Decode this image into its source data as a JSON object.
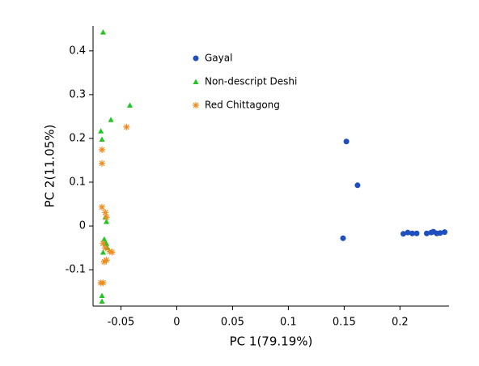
{
  "chart_data": {
    "type": "scatter",
    "xlabel": "PC 1(79.19%)",
    "ylabel": "PC 2(11.05%)",
    "xlim": [
      -0.075,
      0.244
    ],
    "ylim": [
      -0.183,
      0.457
    ],
    "xticks": [
      -0.05,
      0,
      0.05,
      0.1,
      0.15,
      0.2
    ],
    "yticks": [
      -0.1,
      0,
      0.1,
      0.2,
      0.3,
      0.4
    ],
    "legend": "top-center",
    "series": [
      {
        "name": "Gayal",
        "color": "#1f4fbf",
        "marker": "circle",
        "x": [
          0.152,
          0.162,
          0.149,
          0.203,
          0.207,
          0.211,
          0.215,
          0.224,
          0.228,
          0.23,
          0.233,
          0.236,
          0.24
        ],
        "values": [
          0.193,
          0.093,
          -0.028,
          -0.018,
          -0.015,
          -0.017,
          -0.017,
          -0.017,
          -0.015,
          -0.013,
          -0.017,
          -0.016,
          -0.014
        ]
      },
      {
        "name": "Non-descript Deshi",
        "color": "#1fc81f",
        "marker": "triangle",
        "x": [
          -0.066,
          -0.042,
          -0.059,
          -0.068,
          -0.067,
          -0.064,
          -0.063,
          -0.065,
          -0.064,
          -0.062,
          -0.066,
          -0.063,
          -0.067,
          -0.067
        ],
        "values": [
          0.443,
          0.276,
          0.243,
          0.217,
          0.198,
          0.02,
          0.01,
          -0.03,
          -0.04,
          -0.05,
          -0.06,
          -0.04,
          -0.159,
          -0.172
        ]
      },
      {
        "name": "Red Chittagong",
        "color": "#f08c1e",
        "marker": "star",
        "x": [
          -0.045,
          -0.067,
          -0.067,
          -0.067,
          -0.064,
          -0.063,
          -0.066,
          -0.064,
          -0.06,
          -0.058,
          -0.063,
          -0.065,
          -0.068,
          -0.066
        ],
        "values": [
          0.226,
          0.174,
          0.143,
          0.043,
          0.031,
          0.02,
          -0.04,
          -0.05,
          -0.058,
          -0.06,
          -0.078,
          -0.082,
          -0.13,
          -0.13
        ]
      }
    ]
  }
}
